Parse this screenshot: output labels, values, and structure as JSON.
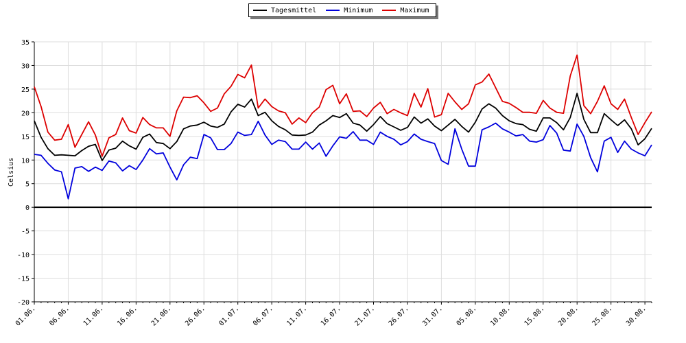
{
  "chart_data": {
    "type": "line",
    "title": "",
    "xlabel": "",
    "ylabel": "Celsius",
    "ylim": [
      -20,
      35
    ],
    "yticks": [
      35,
      30,
      25,
      20,
      15,
      10,
      5,
      0,
      -5,
      -10,
      -15,
      -20
    ],
    "xtick_labels": [
      "01.06.",
      "06.06.",
      "11.06.",
      "16.06.",
      "21.06.",
      "26.06.",
      "01.07.",
      "06.07.",
      "11.07.",
      "16.07.",
      "21.07.",
      "26.07.",
      "31.07.",
      "05.08.",
      "10.08.",
      "15.08.",
      "20.08.",
      "25.08.",
      "30.08."
    ],
    "legend_position": "top-center",
    "grid": true,
    "series": [
      {
        "name": "Tagesmittel",
        "color": "#000000",
        "values": [
          18.3,
          14.8,
          12.4,
          11.0,
          11.1,
          11.0,
          10.9,
          12.0,
          12.9,
          13.3,
          9.9,
          12.1,
          12.5,
          14.0,
          13.0,
          12.3,
          14.8,
          15.5,
          13.7,
          13.5,
          12.4,
          13.9,
          16.6,
          17.2,
          17.4,
          18.0,
          17.2,
          16.9,
          17.6,
          20.2,
          21.8,
          21.2,
          22.9,
          19.4,
          20.1,
          18.3,
          17.1,
          16.4,
          15.3,
          15.2,
          15.3,
          15.9,
          17.4,
          18.3,
          19.4,
          19.0,
          19.8,
          17.8,
          17.4,
          16.1,
          17.5,
          19.2,
          17.7,
          17.0,
          16.3,
          16.9,
          19.1,
          17.8,
          18.7,
          17.2,
          16.2,
          17.4,
          18.6,
          17.1,
          15.9,
          18.0,
          20.8,
          21.9,
          21.0,
          19.4,
          18.3,
          17.7,
          17.5,
          16.5,
          16.1,
          18.9,
          18.9,
          17.9,
          16.4,
          19.0,
          24.1,
          18.6,
          15.8,
          15.8,
          19.8,
          18.5,
          17.3,
          18.5,
          16.6,
          13.2,
          14.5,
          16.7
        ]
      },
      {
        "name": "Minimum",
        "color": "#0000dd",
        "values": [
          11.2,
          11.0,
          9.3,
          7.9,
          7.5,
          1.8,
          8.3,
          8.6,
          7.6,
          8.5,
          7.8,
          9.8,
          9.4,
          7.7,
          8.8,
          8.0,
          10.0,
          12.4,
          11.3,
          11.5,
          8.5,
          5.8,
          9.0,
          10.6,
          10.3,
          15.4,
          14.7,
          12.2,
          12.2,
          13.5,
          15.9,
          15.2,
          15.4,
          18.2,
          15.3,
          13.3,
          14.2,
          13.9,
          12.3,
          12.3,
          13.8,
          12.3,
          13.6,
          10.8,
          13.0,
          14.9,
          14.6,
          16.0,
          14.2,
          14.2,
          13.3,
          15.9,
          15.0,
          14.4,
          13.2,
          13.9,
          15.5,
          14.4,
          13.9,
          13.5,
          9.9,
          9.1,
          16.6,
          12.3,
          8.7,
          8.7,
          16.4,
          17.0,
          17.8,
          16.6,
          15.9,
          15.1,
          15.4,
          14.0,
          13.8,
          14.3,
          17.3,
          15.7,
          12.1,
          11.9,
          17.6,
          15.0,
          10.5,
          7.5,
          14.0,
          14.8,
          11.6,
          14.0,
          12.3,
          11.5,
          10.9,
          13.2
        ]
      },
      {
        "name": "Maximum",
        "color": "#dd0000",
        "values": [
          25.5,
          21.3,
          15.9,
          14.2,
          14.4,
          17.5,
          12.7,
          15.4,
          18.1,
          15.3,
          10.8,
          14.7,
          15.4,
          18.9,
          16.2,
          15.7,
          19.0,
          17.5,
          16.8,
          16.8,
          15.0,
          20.4,
          23.3,
          23.2,
          23.6,
          22.1,
          20.3,
          21.0,
          24.0,
          25.6,
          28.1,
          27.4,
          30.1,
          21.0,
          22.9,
          21.3,
          20.4,
          20.0,
          17.6,
          18.9,
          17.9,
          20.0,
          21.2,
          24.9,
          25.8,
          21.9,
          24.0,
          20.3,
          20.4,
          19.2,
          21.0,
          22.2,
          19.8,
          20.7,
          20.0,
          19.4,
          24.1,
          21.2,
          25.1,
          19.1,
          19.6,
          24.1,
          22.3,
          20.7,
          21.9,
          25.9,
          26.5,
          28.2,
          25.3,
          22.4,
          22.0,
          21.1,
          20.1,
          20.1,
          19.9,
          22.6,
          21.0,
          20.1,
          19.9,
          27.8,
          32.2,
          21.5,
          19.8,
          22.4,
          25.7,
          21.9,
          20.7,
          22.9,
          19.0,
          15.4,
          17.9,
          20.2
        ]
      }
    ]
  }
}
